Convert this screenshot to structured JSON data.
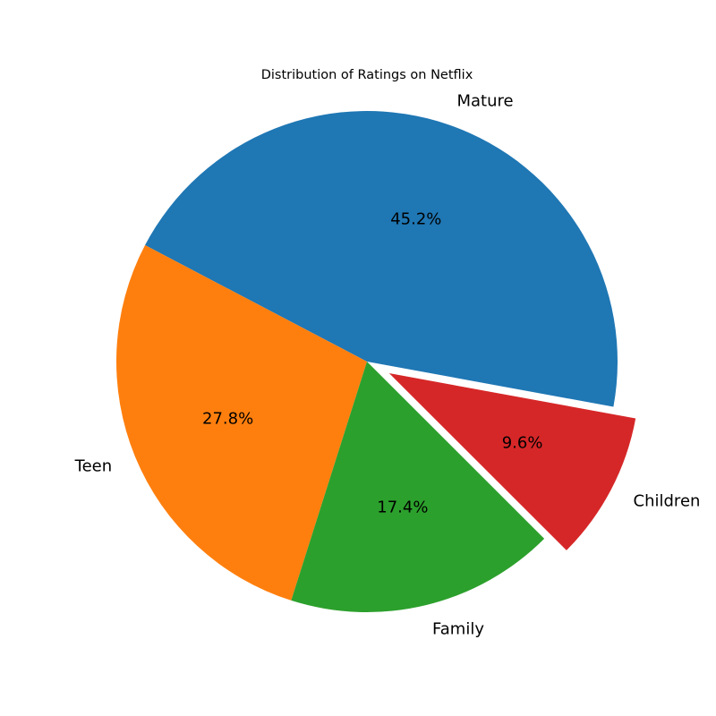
{
  "chart_data": {
    "type": "pie",
    "title": "Distribution of Ratings on Netflix",
    "slices": [
      {
        "label": "Mature",
        "value": 45.2,
        "pct_label": "45.2%",
        "color": "#1f77b4",
        "exploded": false
      },
      {
        "label": "Teen",
        "value": 27.8,
        "pct_label": "27.8%",
        "color": "#ff7f0e",
        "exploded": false
      },
      {
        "label": "Family",
        "value": 17.4,
        "pct_label": "17.4%",
        "color": "#2ca02c",
        "exploded": false
      },
      {
        "label": "Children",
        "value": 9.6,
        "pct_label": "9.6%",
        "color": "#d62728",
        "exploded": true
      }
    ]
  }
}
